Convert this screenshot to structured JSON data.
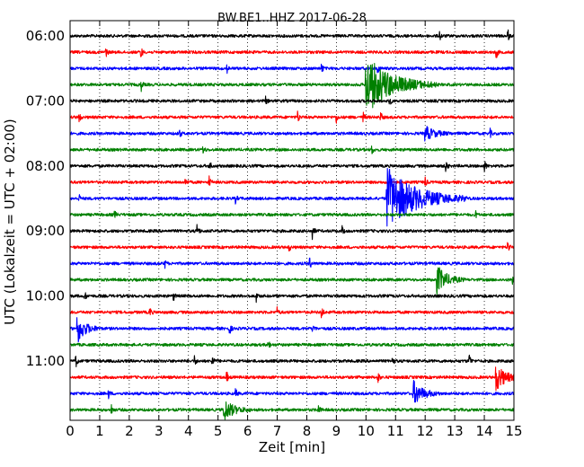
{
  "chart_data": {
    "type": "line",
    "title": "BW.BE1..HHZ 2017-06-28",
    "xlabel": "Zeit  [min]",
    "ylabel": "UTC (Lokalzeit = UTC + 02:00)",
    "xlim": [
      0,
      15
    ],
    "x_ticks": [
      "0",
      "1",
      "2",
      "3",
      "4",
      "5",
      "6",
      "7",
      "8",
      "9",
      "10",
      "11",
      "12",
      "13",
      "14",
      "15"
    ],
    "y_tick_labels": [
      "06:00",
      "07:00",
      "08:00",
      "09:00",
      "10:00",
      "11:00"
    ],
    "grid": "vertical dotted",
    "color_cycle": [
      "#000000",
      "#ff0000",
      "#0000ff",
      "#008000"
    ],
    "traces": [
      {
        "start": "06:00",
        "events": [
          {
            "t": 12.5,
            "a": 0.3
          },
          {
            "t": 14.8,
            "a": 0.4
          }
        ]
      },
      {
        "start": "06:15",
        "events": [
          {
            "t": 1.2,
            "a": 0.45
          },
          {
            "t": 2.4,
            "a": 0.4
          },
          {
            "t": 14.4,
            "a": 0.5
          }
        ]
      },
      {
        "start": "06:30",
        "events": [
          {
            "t": 5.3,
            "a": 0.3
          },
          {
            "t": 8.5,
            "a": 0.35
          },
          {
            "t": 10.4,
            "a": 0.3
          }
        ]
      },
      {
        "start": "06:45",
        "events": [
          {
            "t": 2.4,
            "a": 0.45
          },
          {
            "t": 10.0,
            "a": 2.0,
            "d": 0.8
          }
        ]
      },
      {
        "start": "07:00",
        "events": [
          {
            "t": 6.6,
            "a": 0.3
          },
          {
            "t": 10.8,
            "a": 0.3
          }
        ]
      },
      {
        "start": "07:15",
        "events": [
          {
            "t": 0.3,
            "a": 0.45
          },
          {
            "t": 7.7,
            "a": 0.4
          },
          {
            "t": 9.0,
            "a": 0.35
          },
          {
            "t": 9.9,
            "a": 0.45
          },
          {
            "t": 10.5,
            "a": 0.35
          }
        ]
      },
      {
        "start": "07:30",
        "events": [
          {
            "t": 3.7,
            "a": 0.3
          },
          {
            "t": 12.0,
            "a": 0.5,
            "d": 0.3
          },
          {
            "t": 14.2,
            "a": 0.3
          }
        ]
      },
      {
        "start": "07:45",
        "events": [
          {
            "t": 4.5,
            "a": 0.3
          },
          {
            "t": 10.2,
            "a": 0.35
          }
        ]
      },
      {
        "start": "08:00",
        "events": [
          {
            "t": 4.7,
            "a": 0.55
          },
          {
            "t": 12.7,
            "a": 0.5
          },
          {
            "t": 14.0,
            "a": 0.5
          }
        ]
      },
      {
        "start": "08:15",
        "events": [
          {
            "t": 3.9,
            "a": 0.35
          },
          {
            "t": 4.7,
            "a": 0.4
          },
          {
            "t": 12.0,
            "a": 0.35
          }
        ]
      },
      {
        "start": "08:30",
        "events": [
          {
            "t": 0.3,
            "a": 0.3
          },
          {
            "t": 5.6,
            "a": 0.3
          },
          {
            "t": 10.7,
            "a": 2.2,
            "d": 0.9
          }
        ]
      },
      {
        "start": "08:45",
        "events": [
          {
            "t": 1.5,
            "a": 0.3
          },
          {
            "t": 13.7,
            "a": 0.3
          }
        ]
      },
      {
        "start": "09:00",
        "events": [
          {
            "t": 4.3,
            "a": 0.55
          },
          {
            "t": 8.2,
            "a": 0.55
          },
          {
            "t": 9.2,
            "a": 0.3
          }
        ]
      },
      {
        "start": "09:15",
        "events": [
          {
            "t": 7.4,
            "a": 0.3
          },
          {
            "t": 14.8,
            "a": 0.45
          }
        ]
      },
      {
        "start": "09:30",
        "events": [
          {
            "t": 3.2,
            "a": 0.3
          },
          {
            "t": 8.1,
            "a": 0.45
          }
        ]
      },
      {
        "start": "09:45",
        "events": [
          {
            "t": 12.4,
            "a": 1.0,
            "d": 0.3
          },
          {
            "t": 14.95,
            "a": 0.6
          }
        ]
      },
      {
        "start": "10:00",
        "events": [
          {
            "t": 0.5,
            "a": 0.3
          },
          {
            "t": 3.5,
            "a": 0.3
          },
          {
            "t": 6.3,
            "a": 0.35
          }
        ]
      },
      {
        "start": "10:15",
        "events": [
          {
            "t": 2.7,
            "a": 0.35
          },
          {
            "t": 7.0,
            "a": 0.3
          },
          {
            "t": 8.5,
            "a": 0.45
          }
        ]
      },
      {
        "start": "10:30",
        "events": [
          {
            "t": 0.25,
            "a": 1.0,
            "d": 0.25
          },
          {
            "t": 5.4,
            "a": 0.35
          },
          {
            "t": 8.2,
            "a": 0.45
          }
        ]
      },
      {
        "start": "10:45",
        "events": [
          {
            "t": 6.7,
            "a": 0.35
          }
        ]
      },
      {
        "start": "11:00",
        "events": [
          {
            "t": 0.2,
            "a": 0.4
          },
          {
            "t": 4.2,
            "a": 0.4
          },
          {
            "t": 4.8,
            "a": 0.45
          },
          {
            "t": 10.9,
            "a": 0.3
          },
          {
            "t": 13.5,
            "a": 0.45
          }
        ]
      },
      {
        "start": "11:15",
        "events": [
          {
            "t": 5.3,
            "a": 0.35
          },
          {
            "t": 10.4,
            "a": 0.45
          },
          {
            "t": 14.4,
            "a": 0.9,
            "d": 0.3
          }
        ]
      },
      {
        "start": "11:30",
        "events": [
          {
            "t": 1.3,
            "a": 0.3
          },
          {
            "t": 5.6,
            "a": 0.3
          },
          {
            "t": 11.6,
            "a": 0.85,
            "d": 0.3
          }
        ]
      },
      {
        "start": "11:45",
        "events": [
          {
            "t": 1.4,
            "a": 0.35
          },
          {
            "t": 5.2,
            "a": 0.75,
            "d": 0.3
          },
          {
            "t": 8.4,
            "a": 0.3
          }
        ]
      }
    ]
  }
}
